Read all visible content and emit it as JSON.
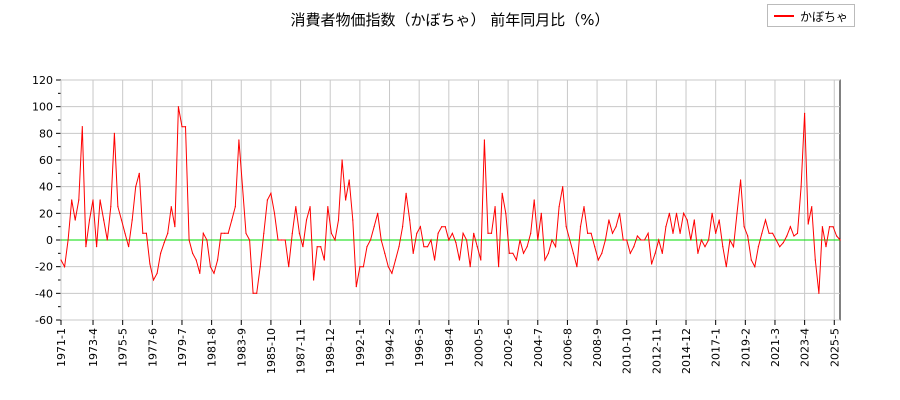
{
  "chart_data": {
    "type": "line",
    "title": "消費者物価指数（かぼちゃ） 前年同月比（%）",
    "xlabel": "",
    "ylabel": "",
    "ylim": [
      -60,
      120
    ],
    "yticks": [
      "120",
      "100",
      "80",
      "60",
      "40",
      "20",
      "0",
      "-20",
      "-40",
      "-60"
    ],
    "xtick_labels": [
      "1971-1",
      "1973-4",
      "1975-5",
      "1977-6",
      "1979-7",
      "1981-8",
      "1983-9",
      "1985-10",
      "1987-11",
      "1989-12",
      "1992-1",
      "1994-2",
      "1996-3",
      "1998-4",
      "2000-5",
      "2002-6",
      "2004-7",
      "2006-8",
      "2008-9",
      "2010-10",
      "2012-11",
      "2014-12",
      "2017-1",
      "2019-2",
      "2021-3",
      "2023-4",
      "2025-5"
    ],
    "grid": true,
    "legend_position": "top-right",
    "reference_line": {
      "value": 0,
      "color": "#00dd00"
    },
    "series": [
      {
        "name": "かぼちゃ",
        "color": "#ff0000",
        "x": [
          "1971-1",
          "1971-4",
          "1971-7",
          "1971-10",
          "1972-1",
          "1972-4",
          "1972-7",
          "1972-10",
          "1973-1",
          "1973-4",
          "1973-7",
          "1973-10",
          "1974-1",
          "1974-4",
          "1974-7",
          "1974-10",
          "1975-1",
          "1975-4",
          "1975-7",
          "1975-10",
          "1976-1",
          "1976-4",
          "1976-7",
          "1976-10",
          "1977-1",
          "1977-4",
          "1977-7",
          "1977-10",
          "1978-1",
          "1978-4",
          "1978-7",
          "1978-10",
          "1979-1",
          "1979-4",
          "1979-7",
          "1979-10",
          "1980-1",
          "1980-4",
          "1980-7",
          "1980-10",
          "1981-1",
          "1981-4",
          "1981-7",
          "1981-10",
          "1982-1",
          "1982-4",
          "1982-7",
          "1982-10",
          "1983-1",
          "1983-4",
          "1983-7",
          "1983-10",
          "1984-1",
          "1984-4",
          "1984-7",
          "1984-10",
          "1985-1",
          "1985-4",
          "1985-7",
          "1985-10",
          "1986-1",
          "1986-4",
          "1986-7",
          "1986-10",
          "1987-1",
          "1987-4",
          "1987-7",
          "1987-10",
          "1988-1",
          "1988-4",
          "1988-7",
          "1988-10",
          "1989-1",
          "1989-4",
          "1989-7",
          "1989-10",
          "1990-1",
          "1990-4",
          "1990-7",
          "1990-10",
          "1991-1",
          "1991-4",
          "1991-7",
          "1991-10",
          "1992-1",
          "1992-4",
          "1992-7",
          "1992-10",
          "1993-1",
          "1993-4",
          "1993-7",
          "1993-10",
          "1994-1",
          "1994-4",
          "1994-7",
          "1994-10",
          "1995-1",
          "1995-4",
          "1995-7",
          "1995-10",
          "1996-1",
          "1996-4",
          "1996-7",
          "1996-10",
          "1997-1",
          "1997-4",
          "1997-7",
          "1997-10",
          "1998-1",
          "1998-4",
          "1998-7",
          "1998-10",
          "1999-1",
          "1999-4",
          "1999-7",
          "1999-10",
          "2000-1",
          "2000-4",
          "2000-7",
          "2000-10",
          "2001-1",
          "2001-4",
          "2001-7",
          "2001-10",
          "2002-1",
          "2002-4",
          "2002-7",
          "2002-10",
          "2003-1",
          "2003-4",
          "2003-7",
          "2003-10",
          "2004-1",
          "2004-4",
          "2004-7",
          "2004-10",
          "2005-1",
          "2005-4",
          "2005-7",
          "2005-10",
          "2006-1",
          "2006-4",
          "2006-7",
          "2006-10",
          "2007-1",
          "2007-4",
          "2007-7",
          "2007-10",
          "2008-1",
          "2008-4",
          "2008-7",
          "2008-10",
          "2009-1",
          "2009-4",
          "2009-7",
          "2009-10",
          "2010-1",
          "2010-4",
          "2010-7",
          "2010-10",
          "2011-1",
          "2011-4",
          "2011-7",
          "2011-10",
          "2012-1",
          "2012-4",
          "2012-7",
          "2012-10",
          "2013-1",
          "2013-4",
          "2013-7",
          "2013-10",
          "2014-1",
          "2014-4",
          "2014-7",
          "2014-10",
          "2015-1",
          "2015-4",
          "2015-7",
          "2015-10",
          "2016-1",
          "2016-4",
          "2016-7",
          "2016-10",
          "2017-1",
          "2017-4",
          "2017-7",
          "2017-10",
          "2018-1",
          "2018-4",
          "2018-7",
          "2018-10",
          "2019-1",
          "2019-4",
          "2019-7",
          "2019-10",
          "2020-1",
          "2020-4",
          "2020-7",
          "2020-10",
          "2021-1",
          "2021-4",
          "2021-7",
          "2021-10",
          "2022-1",
          "2022-4",
          "2022-7",
          "2022-10",
          "2023-1",
          "2023-4",
          "2023-7",
          "2023-10",
          "2024-1",
          "2024-4",
          "2024-7",
          "2024-10",
          "2025-1",
          "2025-4",
          "2025-7",
          "2025-10"
        ],
        "values": [
          -15,
          -20,
          0,
          30,
          15,
          30,
          85,
          -5,
          15,
          30,
          -5,
          30,
          15,
          0,
          25,
          80,
          25,
          15,
          5,
          -5,
          15,
          40,
          50,
          5,
          5,
          -18,
          -30,
          -25,
          -10,
          -2,
          5,
          25,
          10,
          100,
          85,
          85,
          0,
          -10,
          -15,
          -25,
          5,
          0,
          -20,
          -25,
          -15,
          5,
          5,
          5,
          15,
          25,
          75,
          40,
          5,
          0,
          -40,
          -40,
          -20,
          5,
          30,
          35,
          20,
          0,
          0,
          0,
          -20,
          5,
          25,
          5,
          -5,
          15,
          25,
          -30,
          -5,
          -5,
          -15,
          25,
          5,
          0,
          15,
          60,
          30,
          45,
          15,
          -35,
          -20,
          -20,
          -5,
          0,
          10,
          20,
          0,
          -10,
          -20,
          -25,
          -15,
          -5,
          10,
          35,
          15,
          -10,
          5,
          10,
          -5,
          -5,
          0,
          -15,
          5,
          10,
          10,
          0,
          5,
          -2,
          -15,
          5,
          0,
          -20,
          5,
          -5,
          -15,
          75,
          5,
          5,
          25,
          -20,
          35,
          20,
          -10,
          -10,
          -15,
          0,
          -10,
          -5,
          5,
          30,
          0,
          20,
          -15,
          -10,
          0,
          -5,
          25,
          40,
          10,
          0,
          -10,
          -20,
          10,
          25,
          5,
          5,
          -5,
          -15,
          -10,
          0,
          15,
          5,
          10,
          20,
          0,
          0,
          -10,
          -5,
          3,
          0,
          0,
          5,
          -18,
          -10,
          0,
          -10,
          10,
          20,
          5,
          20,
          5,
          20,
          15,
          0,
          15,
          -10,
          0,
          -5,
          0,
          20,
          5,
          15,
          -5,
          -20,
          0,
          -5,
          20,
          45,
          10,
          3,
          -15,
          -20,
          -5,
          5,
          15,
          5,
          5,
          0,
          -5,
          -2,
          3,
          10,
          3,
          5,
          40,
          95,
          12,
          25,
          -15,
          -40,
          10,
          -5,
          10,
          10,
          3,
          0
        ]
      }
    ]
  }
}
